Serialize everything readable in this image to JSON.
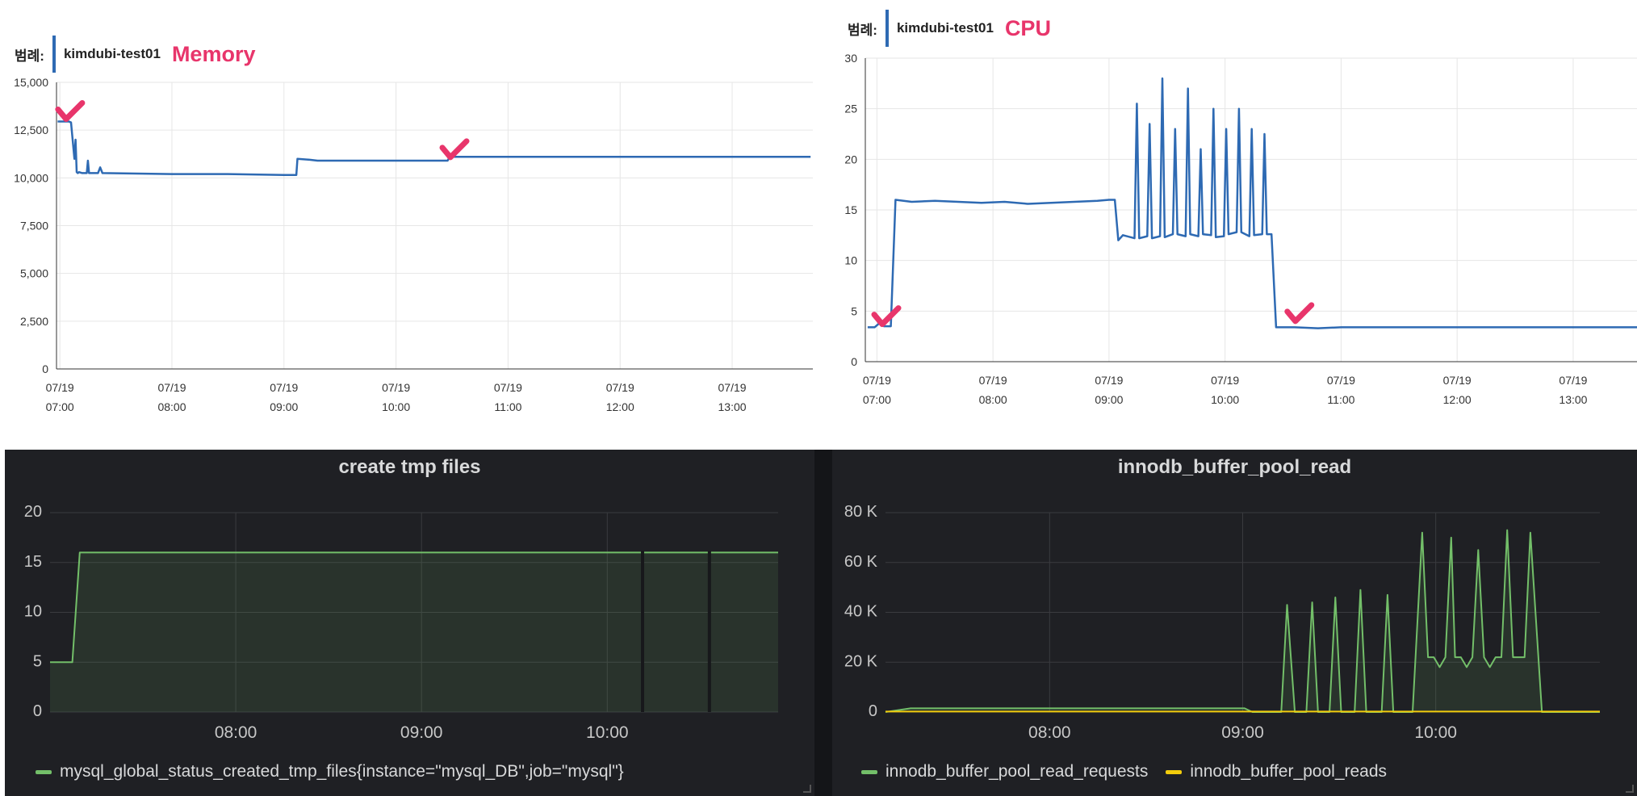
{
  "chart_data": [
    {
      "type": "line",
      "legend_label": "범례:",
      "annotation": "Memory",
      "ylim": [
        0,
        15000
      ],
      "yticks": [
        "15,000",
        "12,500",
        "10,000",
        "7,500",
        "5,000",
        "2,500",
        "0"
      ],
      "ytick_values": [
        15000,
        12500,
        10000,
        7500,
        5000,
        2500,
        0
      ],
      "xlim": [
        6.97,
        13.72
      ],
      "xticks": [
        {
          "value": 7,
          "line1": "07/19",
          "line2": "07:00"
        },
        {
          "value": 8,
          "line1": "07/19",
          "line2": "08:00"
        },
        {
          "value": 9,
          "line1": "07/19",
          "line2": "09:00"
        },
        {
          "value": 10,
          "line1": "07/19",
          "line2": "10:00"
        },
        {
          "value": 11,
          "line1": "07/19",
          "line2": "11:00"
        },
        {
          "value": 12,
          "line1": "07/19",
          "line2": "12:00"
        },
        {
          "value": 13,
          "line1": "07/19",
          "line2": "13:00"
        }
      ],
      "series": [
        {
          "name": "kimdubi-test01",
          "color": "#2e6ab3",
          "x": [
            6.98,
            7.08,
            7.1,
            7.13,
            7.14,
            7.15,
            7.16,
            7.17,
            7.2,
            7.24,
            7.25,
            7.26,
            7.34,
            7.36,
            7.38,
            8.0,
            8.5,
            9.0,
            9.11,
            9.12,
            9.23,
            9.3,
            10.0,
            10.46,
            10.48,
            11.0,
            12.0,
            13.0,
            13.7
          ],
          "y": [
            12950,
            12950,
            12900,
            11000,
            12000,
            10300,
            10250,
            10300,
            10250,
            10250,
            10900,
            10250,
            10250,
            10550,
            10250,
            10200,
            10200,
            10150,
            10150,
            11000,
            10950,
            10900,
            10900,
            10900,
            11100,
            11100,
            11100,
            11100,
            11100
          ]
        }
      ],
      "checkmarks": [
        {
          "x": 7.07,
          "y": 13500
        },
        {
          "x": 10.5,
          "y": 11500
        }
      ]
    },
    {
      "type": "line",
      "legend_label": "범례:",
      "annotation": "CPU",
      "ylim": [
        0,
        30
      ],
      "yticks": [
        "30",
        "25",
        "20",
        "15",
        "10",
        "5",
        "0"
      ],
      "ytick_values": [
        30,
        25,
        20,
        15,
        10,
        5,
        0
      ],
      "xlim": [
        6.9,
        13.55
      ],
      "xticks": [
        {
          "value": 7,
          "line1": "07/19",
          "line2": "07:00"
        },
        {
          "value": 8,
          "line1": "07/19",
          "line2": "08:00"
        },
        {
          "value": 9,
          "line1": "07/19",
          "line2": "09:00"
        },
        {
          "value": 10,
          "line1": "07/19",
          "line2": "10:00"
        },
        {
          "value": 11,
          "line1": "07/19",
          "line2": "11:00"
        },
        {
          "value": 12,
          "line1": "07/19",
          "line2": "12:00"
        },
        {
          "value": 13,
          "line1": "07/19",
          "line2": "13:00"
        }
      ],
      "series": [
        {
          "name": "kimdubi-test01",
          "color": "#2e6ab3",
          "x": [
            6.92,
            6.98,
            7.02,
            7.06,
            7.08,
            7.12,
            7.16,
            7.3,
            7.5,
            7.7,
            7.9,
            8.1,
            8.3,
            8.5,
            8.7,
            8.9,
            9.0,
            9.05,
            9.08,
            9.12,
            9.22,
            9.24,
            9.26,
            9.33,
            9.35,
            9.37,
            9.44,
            9.46,
            9.48,
            9.55,
            9.57,
            9.59,
            9.66,
            9.68,
            9.7,
            9.77,
            9.79,
            9.81,
            9.88,
            9.9,
            9.92,
            9.99,
            10.01,
            10.03,
            10.1,
            10.12,
            10.14,
            10.21,
            10.23,
            10.25,
            10.32,
            10.34,
            10.36,
            10.4,
            10.44,
            10.6,
            10.8,
            11.0,
            11.5,
            12.0,
            12.5,
            13.0,
            13.55
          ],
          "y": [
            3.4,
            3.4,
            3.8,
            3.5,
            3.5,
            3.5,
            16,
            15.8,
            15.9,
            15.8,
            15.7,
            15.8,
            15.6,
            15.7,
            15.8,
            15.9,
            16,
            16,
            12,
            12.5,
            12.2,
            25.5,
            12.2,
            12.4,
            23.5,
            12.2,
            12.4,
            28,
            12.3,
            12.6,
            23,
            12.6,
            12.4,
            27,
            12.6,
            12.4,
            21,
            12.6,
            12.5,
            25,
            12.3,
            12.4,
            23,
            12.6,
            12.8,
            25,
            12.8,
            12.4,
            23,
            12.5,
            12.6,
            22.5,
            12.6,
            12.6,
            3.4,
            3.4,
            3.3,
            3.4,
            3.4,
            3.4,
            3.4,
            3.4,
            3.4
          ]
        }
      ],
      "checkmarks": [
        {
          "x": 7.06,
          "y": 4.5
        },
        {
          "x": 10.62,
          "y": 4.8
        }
      ]
    },
    {
      "type": "area",
      "title": "create tmp files",
      "ylim": [
        0,
        20
      ],
      "yticks": [
        "20",
        "15",
        "10",
        "5",
        "0"
      ],
      "ytick_values": [
        20,
        15,
        10,
        5,
        0
      ],
      "xlim": [
        7.0,
        10.92
      ],
      "xticks": [
        {
          "value": 8,
          "label": "08:00"
        },
        {
          "value": 9,
          "label": "09:00"
        },
        {
          "value": 10,
          "label": "10:00"
        }
      ],
      "breaks": [
        10.19,
        10.55
      ],
      "series": [
        {
          "name": "mysql_global_status_created_tmp_files{instance=\"mysql_DB\",job=\"mysql\"}",
          "color": "#73bf69",
          "x": [
            7.0,
            7.12,
            7.16,
            10.92
          ],
          "y": [
            5,
            5,
            16,
            16
          ]
        }
      ]
    },
    {
      "type": "area",
      "title": "innodb_buffer_pool_read",
      "ylim": [
        0,
        80000
      ],
      "yticks": [
        "80 K",
        "60 K",
        "40 K",
        "20 K",
        "0"
      ],
      "ytick_values": [
        80000,
        60000,
        40000,
        20000,
        0
      ],
      "xlim": [
        7.15,
        10.85
      ],
      "xticks": [
        {
          "value": 8,
          "label": "08:00"
        },
        {
          "value": 9,
          "label": "09:00"
        },
        {
          "value": 10,
          "label": "10:00"
        }
      ],
      "series": [
        {
          "name": "innodb_buffer_pool_read_requests",
          "color": "#73bf69",
          "x": [
            7.15,
            7.28,
            9.01,
            9.05,
            9.2,
            9.23,
            9.27,
            9.33,
            9.36,
            9.39,
            9.45,
            9.48,
            9.51,
            9.58,
            9.61,
            9.64,
            9.72,
            9.75,
            9.78,
            9.88,
            9.93,
            9.96,
            9.99,
            10.02,
            10.05,
            10.08,
            10.1,
            10.13,
            10.16,
            10.19,
            10.22,
            10.25,
            10.28,
            10.31,
            10.34,
            10.37,
            10.4,
            10.43,
            10.46,
            10.49,
            10.55,
            10.85
          ],
          "y": [
            0,
            1500,
            1500,
            0,
            0,
            43000,
            0,
            0,
            44000,
            0,
            0,
            46000,
            0,
            0,
            49000,
            0,
            0,
            47000,
            0,
            0,
            72000,
            22000,
            22000,
            18000,
            22000,
            70000,
            22000,
            22000,
            18000,
            22000,
            65000,
            22000,
            18000,
            22000,
            22000,
            73000,
            22000,
            22000,
            22000,
            72000,
            0,
            0
          ]
        },
        {
          "name": "innodb_buffer_pool_reads",
          "color": "#f2cc0c",
          "x": [
            7.15,
            10.85
          ],
          "y": [
            200,
            200
          ]
        }
      ]
    }
  ]
}
